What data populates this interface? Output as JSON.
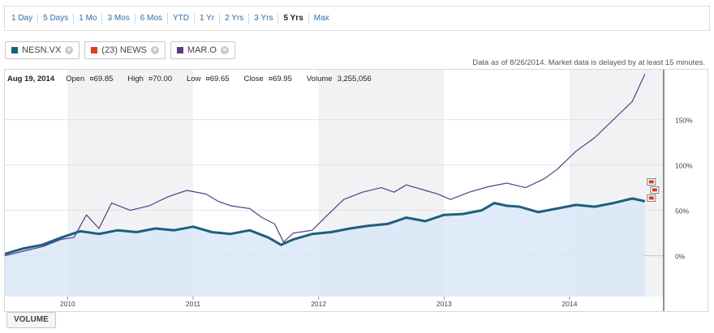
{
  "tabs": [
    "1 Day",
    "5 Days",
    "1 Mo",
    "3 Mos",
    "6 Mos",
    "YTD",
    "1 Yr",
    "2 Yrs",
    "3 Yrs",
    "5 Yrs",
    "Max"
  ],
  "active_tab": "5 Yrs",
  "series_chips": [
    {
      "label": "NESN.VX",
      "color": "#1d5f7f"
    },
    {
      "label": "(23) NEWS",
      "color": "#e03a1e"
    },
    {
      "label": "MAR.O",
      "color": "#5c3a8a"
    }
  ],
  "disclaimer": "Data as of 8/26/2014. Market data is delayed by at least 15 minutes.",
  "quote": {
    "date": "Aug 19, 2014",
    "open_label": "Open",
    "open": "¤69.85",
    "high_label": "High",
    "high": "¤70.00",
    "low_label": "Low",
    "low": "¤69.65",
    "close_label": "Close",
    "close": "¤69.95",
    "volume_label": "Volume",
    "volume": "3,255,056"
  },
  "volume_button": "VOLUME",
  "colors": {
    "nesn": "#1d5f7f",
    "maro": "#5c3a8a",
    "area_fill": "#d9e8f7",
    "band_alt": "#f1f2f4",
    "news": "#e03a1e"
  },
  "chart_data": {
    "type": "line",
    "x_range": [
      2009.5,
      2014.75
    ],
    "y_range_pct": [
      -45,
      205
    ],
    "x_ticks": [
      "2010",
      "2011",
      "2012",
      "2013",
      "2014"
    ],
    "y_ticks": [
      {
        "v": 150,
        "label": "150%"
      },
      {
        "v": 100,
        "label": "100%"
      },
      {
        "v": 50,
        "label": "50%"
      },
      {
        "v": 0,
        "label": "0%"
      }
    ],
    "series": [
      {
        "name": "NESN.VX",
        "x": [
          2009.5,
          2009.65,
          2009.8,
          2009.95,
          2010.1,
          2010.25,
          2010.4,
          2010.55,
          2010.7,
          2010.85,
          2011.0,
          2011.15,
          2011.3,
          2011.45,
          2011.6,
          2011.7,
          2011.8,
          2011.95,
          2012.1,
          2012.25,
          2012.4,
          2012.55,
          2012.7,
          2012.85,
          2013.0,
          2013.15,
          2013.3,
          2013.4,
          2013.5,
          2013.6,
          2013.75,
          2013.9,
          2014.05,
          2014.2,
          2014.35,
          2014.5,
          2014.6
        ],
        "values": [
          2,
          8,
          12,
          20,
          27,
          24,
          28,
          26,
          30,
          28,
          32,
          26,
          24,
          28,
          20,
          12,
          18,
          24,
          26,
          30,
          33,
          35,
          42,
          38,
          45,
          46,
          50,
          58,
          55,
          54,
          48,
          52,
          56,
          54,
          58,
          63,
          60
        ]
      },
      {
        "name": "MAR.O",
        "x": [
          2009.5,
          2009.65,
          2009.8,
          2009.95,
          2010.05,
          2010.15,
          2010.25,
          2010.35,
          2010.5,
          2010.65,
          2010.8,
          2010.95,
          2011.1,
          2011.2,
          2011.3,
          2011.45,
          2011.55,
          2011.65,
          2011.72,
          2011.8,
          2011.95,
          2012.05,
          2012.2,
          2012.35,
          2012.5,
          2012.6,
          2012.7,
          2012.85,
          2012.95,
          2013.05,
          2013.2,
          2013.35,
          2013.5,
          2013.65,
          2013.8,
          2013.9,
          2014.05,
          2014.2,
          2014.35,
          2014.5,
          2014.6
        ],
        "values": [
          0,
          5,
          10,
          18,
          20,
          45,
          30,
          58,
          50,
          55,
          65,
          72,
          68,
          60,
          55,
          52,
          42,
          35,
          15,
          25,
          28,
          42,
          62,
          70,
          75,
          70,
          78,
          72,
          68,
          62,
          70,
          76,
          80,
          75,
          85,
          95,
          115,
          130,
          150,
          170,
          200
        ]
      }
    ],
    "news_markers": 3
  }
}
